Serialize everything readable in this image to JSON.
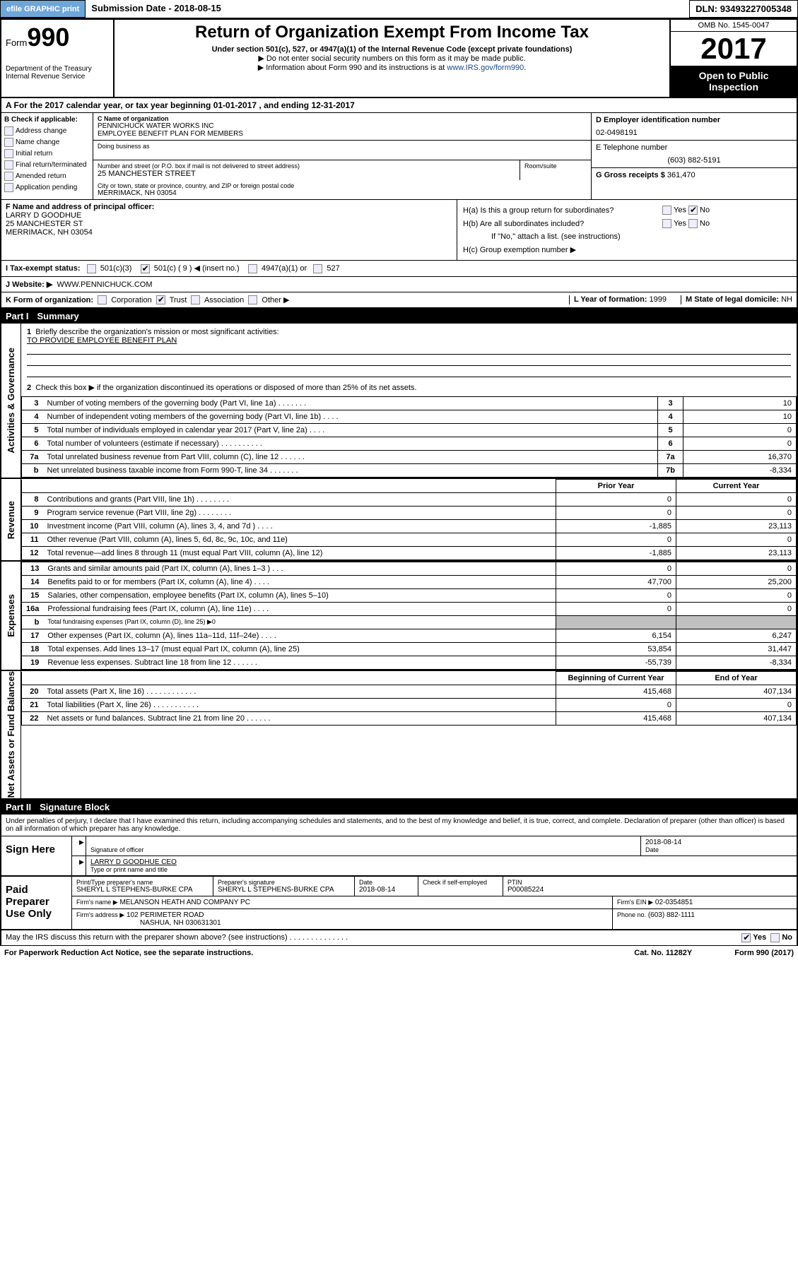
{
  "meta": {
    "efile_btn": "efile GRAPHIC print",
    "submission_label": "Submission Date -",
    "submission_date": "2018-08-15",
    "dln_label": "DLN:",
    "dln": "93493227005348"
  },
  "header": {
    "form_word": "Form",
    "form_num": "990",
    "dept1": "Department of the Treasury",
    "dept2": "Internal Revenue Service",
    "title": "Return of Organization Exempt From Income Tax",
    "subtitle": "Under section 501(c), 527, or 4947(a)(1) of the Internal Revenue Code (except private foundations)",
    "note1_arrow": "▶",
    "note1": "Do not enter social security numbers on this form as it may be made public.",
    "note2_arrow": "▶",
    "note2": "Information about Form 990 and its instructions is at ",
    "note2_link": "www.IRS.gov/form990",
    "omb": "OMB No. 1545-0047",
    "year": "2017",
    "open": "Open to Public Inspection"
  },
  "lineA": {
    "prefix": "A  For the 2017 calendar year, or tax year beginning",
    "begin": "01-01-2017",
    "mid": ", and ending",
    "end": "12-31-2017"
  },
  "colB": {
    "header": "B Check if applicable:",
    "items": [
      "Address change",
      "Name change",
      "Initial return",
      "Final return/terminated",
      "Amended return",
      "Application pending"
    ]
  },
  "colC": {
    "name_label": "C Name of organization",
    "name1": "PENNICHUCK WATER WORKS INC",
    "name2": "EMPLOYEE BENEFIT PLAN FOR MEMBERS",
    "dba_label": "Doing business as",
    "street_label": "Number and street (or P.O. box if mail is not delivered to street address)",
    "room_label": "Room/suite",
    "street": "25 MANCHESTER STREET",
    "city_label": "City or town, state or province, country, and ZIP or foreign postal code",
    "city": "MERRIMACK, NH  03054"
  },
  "colD": {
    "ein_label": "D Employer identification number",
    "ein": "02-0498191",
    "tel_label": "E Telephone number",
    "tel": "(603) 882-5191",
    "gross_label": "G Gross receipts $",
    "gross": "361,470"
  },
  "colF": {
    "label": "F  Name and address of principal officer:",
    "name": "LARRY D GOODHUE",
    "addr1": "25 MANCHESTER ST",
    "addr2": "MERRIMACK, NH  03054"
  },
  "colH": {
    "ha": "H(a)  Is this a group return for subordinates?",
    "hb": "H(b)  Are all subordinates included?",
    "hb_note": "If \"No,\" attach a list. (see instructions)",
    "hc": "H(c)  Group exemption number ▶",
    "yes": "Yes",
    "no": "No"
  },
  "lineI": {
    "label": "I  Tax-exempt status:",
    "opt1": "501(c)(3)",
    "opt2": "501(c) ( 9 ) ◀ (insert no.)",
    "opt3": "4947(a)(1) or",
    "opt4": "527"
  },
  "lineJ": {
    "label": "J  Website: ▶",
    "value": "WWW.PENNICHUCK.COM"
  },
  "lineK": {
    "label": "K Form of organization:",
    "opts": [
      "Corporation",
      "Trust",
      "Association",
      "Other ▶"
    ],
    "L_label": "L Year of formation:",
    "L_val": "1999",
    "M_label": "M State of legal domicile:",
    "M_val": "NH"
  },
  "part1": {
    "num": "Part I",
    "title": "Summary",
    "q1": "Briefly describe the organization's mission or most significant activities:",
    "q1_ans": "TO PROVIDE EMPLOYEE BENEFIT PLAN",
    "q2": "Check this box ▶     if the organization discontinued its operations or disposed of more than 25% of its net assets.",
    "vlabel_ag": "Activities & Governance",
    "vlabel_rev": "Revenue",
    "vlabel_exp": "Expenses",
    "vlabel_na": "Net Assets or Fund Balances",
    "rows_ag": [
      {
        "n": "3",
        "desc": "Number of voting members of the governing body (Part VI, line 1a)  .   .   .   .   .   .   .",
        "box": "3",
        "val": "10"
      },
      {
        "n": "4",
        "desc": "Number of independent voting members of the governing body (Part VI, line 1b)   .   .   .   .",
        "box": "4",
        "val": "10"
      },
      {
        "n": "5",
        "desc": "Total number of individuals employed in calendar year 2017 (Part V, line 2a)   .   .   .   .",
        "box": "5",
        "val": "0"
      },
      {
        "n": "6",
        "desc": "Total number of volunteers (estimate if necessary)   .   .   .   .   .   .   .   .   .   .",
        "box": "6",
        "val": "0"
      },
      {
        "n": "7a",
        "desc": "Total unrelated business revenue from Part VIII, column (C), line 12   .   .   .   .   .   .",
        "box": "7a",
        "val": "16,370"
      },
      {
        "n": "b",
        "desc": "Net unrelated business taxable income from Form 990-T, line 34   .   .   .   .   .   .   .",
        "box": "7b",
        "val": "-8,334"
      }
    ],
    "col_py": "Prior Year",
    "col_cy": "Current Year",
    "rows_rev": [
      {
        "n": "8",
        "desc": "Contributions and grants (Part VIII, line 1h)   .   .   .   .   .   .   .   .",
        "py": "0",
        "cy": "0"
      },
      {
        "n": "9",
        "desc": "Program service revenue (Part VIII, line 2g)   .   .   .   .   .   .   .   .",
        "py": "0",
        "cy": "0"
      },
      {
        "n": "10",
        "desc": "Investment income (Part VIII, column (A), lines 3, 4, and 7d )   .   .   .   .",
        "py": "-1,885",
        "cy": "23,113"
      },
      {
        "n": "11",
        "desc": "Other revenue (Part VIII, column (A), lines 5, 6d, 8c, 9c, 10c, and 11e)",
        "py": "0",
        "cy": "0"
      },
      {
        "n": "12",
        "desc": "Total revenue—add lines 8 through 11 (must equal Part VIII, column (A), line 12)",
        "py": "-1,885",
        "cy": "23,113"
      }
    ],
    "rows_exp": [
      {
        "n": "13",
        "desc": "Grants and similar amounts paid (Part IX, column (A), lines 1–3 )  .   .   .",
        "py": "0",
        "cy": "0"
      },
      {
        "n": "14",
        "desc": "Benefits paid to or for members (Part IX, column (A), line 4)   .   .   .   .",
        "py": "47,700",
        "cy": "25,200"
      },
      {
        "n": "15",
        "desc": "Salaries, other compensation, employee benefits (Part IX, column (A), lines 5–10)",
        "py": "0",
        "cy": "0"
      },
      {
        "n": "16a",
        "desc": "Professional fundraising fees (Part IX, column (A), line 11e)   .   .   .   .",
        "py": "0",
        "cy": "0"
      },
      {
        "n": "b",
        "desc": "Total fundraising expenses (Part IX, column (D), line 25) ▶0",
        "py": "",
        "cy": "",
        "shade": true,
        "small": true
      },
      {
        "n": "17",
        "desc": "Other expenses (Part IX, column (A), lines 11a–11d, 11f–24e)   .   .   .   .",
        "py": "6,154",
        "cy": "6,247"
      },
      {
        "n": "18",
        "desc": "Total expenses. Add lines 13–17 (must equal Part IX, column (A), line 25)",
        "py": "53,854",
        "cy": "31,447"
      },
      {
        "n": "19",
        "desc": "Revenue less expenses. Subtract line 18 from line 12   .   .   .   .   .   .",
        "py": "-55,739",
        "cy": "-8,334"
      }
    ],
    "col_bcy": "Beginning of Current Year",
    "col_eoy": "End of Year",
    "rows_na": [
      {
        "n": "20",
        "desc": "Total assets (Part X, line 16)   .   .   .   .   .   .   .   .   .   .   .   .",
        "py": "415,468",
        "cy": "407,134"
      },
      {
        "n": "21",
        "desc": "Total liabilities (Part X, line 26)   .   .   .   .   .   .   .   .   .   .   .",
        "py": "0",
        "cy": "0"
      },
      {
        "n": "22",
        "desc": "Net assets or fund balances. Subtract line 21 from line 20 .   .   .   .   .   .",
        "py": "415,468",
        "cy": "407,134"
      }
    ]
  },
  "part2": {
    "num": "Part II",
    "title": "Signature Block",
    "perjury": "Under penalties of perjury, I declare that I have examined this return, including accompanying schedules and statements, and to the best of my knowledge and belief, it is true, correct, and complete. Declaration of preparer (other than officer) is based on all information of which preparer has any knowledge.",
    "sign_here": "Sign Here",
    "sig_officer_label": "Signature of officer",
    "sig_date_label": "Date",
    "sig_date": "2018-08-14",
    "officer_name": "LARRY D GOODHUE CEO",
    "officer_name_label": "Type or print name and title",
    "paid_label": "Paid Preparer Use Only",
    "prep_name_label": "Print/Type preparer's name",
    "prep_name": "SHERYL L STEPHENS-BURKE CPA",
    "prep_sig_label": "Preparer's signature",
    "prep_sig": "SHERYL L STEPHENS-BURKE CPA",
    "prep_date_label": "Date",
    "prep_date": "2018-08-14",
    "self_emp": "Check      if self-employed",
    "ptin_label": "PTIN",
    "ptin": "P00085224",
    "firm_name_label": "Firm's name    ▶",
    "firm_name": "MELANSON HEATH AND COMPANY PC",
    "firm_ein_label": "Firm's EIN ▶",
    "firm_ein": "02-0354851",
    "firm_addr_label": "Firm's address ▶",
    "firm_addr1": "102 PERIMETER ROAD",
    "firm_addr2": "NASHUA, NH  030631301",
    "firm_phone_label": "Phone no.",
    "firm_phone": "(603) 882-1111"
  },
  "footer": {
    "discuss": "May the IRS discuss this return with the preparer shown above? (see instructions)   .   .   .   .   .   .   .   .   .   .   .   .   .   .",
    "yes": "Yes",
    "no": "No",
    "paperwork": "For Paperwork Reduction Act Notice, see the separate instructions.",
    "cat": "Cat. No. 11282Y",
    "form": "Form 990 (2017)"
  }
}
